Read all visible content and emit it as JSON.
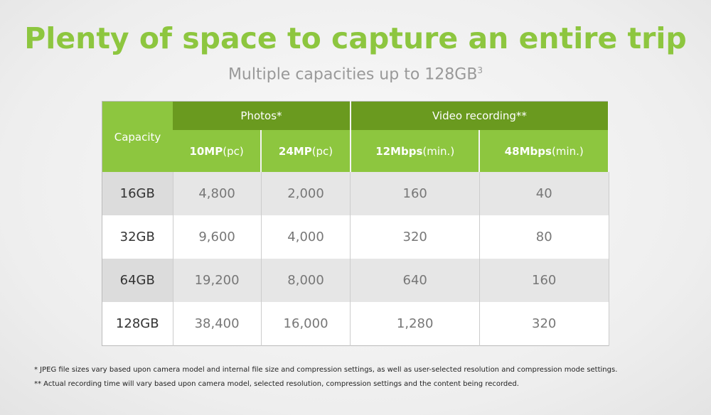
{
  "header": {
    "title": "Plenty of space to capture an entire trip",
    "subtitle": "Multiple capacities up to 128GB",
    "subtitle_sup": "3"
  },
  "table": {
    "corner": "Capacity",
    "groups": [
      "Photos*",
      "Video recording**"
    ],
    "columns": [
      {
        "bold": "10MP",
        "unit": "(pc)"
      },
      {
        "bold": "24MP",
        "unit": "(pc)"
      },
      {
        "bold": "12Mbps",
        "unit": "(min.)"
      },
      {
        "bold": "48Mbps",
        "unit": "(min.)"
      }
    ],
    "rows": [
      [
        "16GB",
        "4,800",
        "2,000",
        "160",
        "40"
      ],
      [
        "32GB",
        "9,600",
        "4,000",
        "320",
        "80"
      ],
      [
        "64GB",
        "19,200",
        "8,000",
        "640",
        "160"
      ],
      [
        "128GB",
        "38,400",
        "16,000",
        "1,280",
        "320"
      ]
    ]
  },
  "footnotes": [
    "* JPEG file sizes vary based upon camera model and internal file size and compression settings, as well as user-selected resolution and compression mode settings.",
    "** Actual recording time will vary based upon camera model, selected resolution, compression settings and the content being recorded."
  ]
}
